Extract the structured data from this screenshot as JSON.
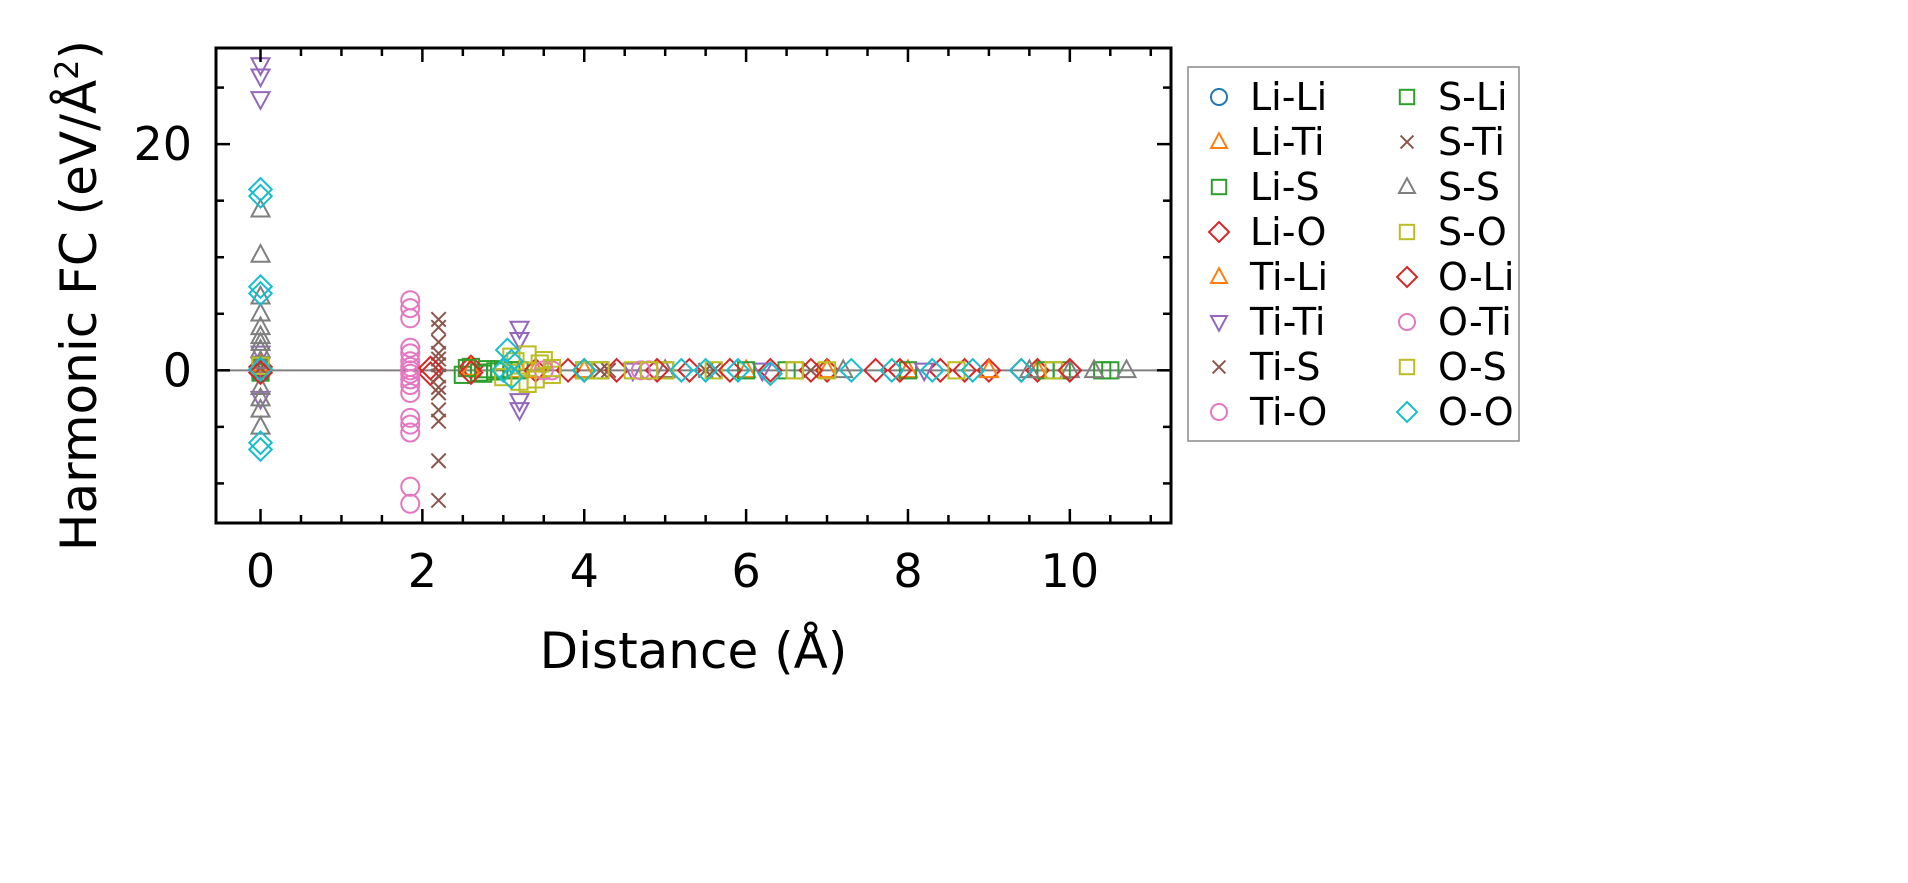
{
  "chart_data": {
    "type": "scatter",
    "title": "",
    "xlabel": "Distance (Å)",
    "ylabel_main": "Harmonic FC (eV/Å",
    "ylabel_sup": "2",
    "ylabel_close": ")",
    "xlim": [
      -0.55,
      11.25
    ],
    "ylim": [
      -13.5,
      28.5
    ],
    "xticks": [
      0,
      2,
      4,
      6,
      8,
      10
    ],
    "yticks": [
      0,
      20
    ],
    "xtick_labels": [
      "0",
      "2",
      "4",
      "6",
      "8",
      "10"
    ],
    "ytick_labels": [
      "0",
      "20"
    ],
    "grid": false,
    "legend_position": "outside-right",
    "reference_line_y": 0,
    "series": [
      {
        "name": "Li-Li",
        "marker": "circle",
        "color": "#1f77b4",
        "x": [
          0,
          0,
          0
        ],
        "y": [
          0.1,
          -0.2,
          0.3
        ]
      },
      {
        "name": "Li-Ti",
        "marker": "triangle-up",
        "color": "#ff7f0e",
        "x": [
          0,
          2.6,
          3.2,
          4.0,
          6.0,
          8.0,
          9.6
        ],
        "y": [
          0.6,
          0.1,
          0.0,
          0.0,
          0.0,
          0.0,
          0.0
        ]
      },
      {
        "name": "Li-S",
        "marker": "square",
        "color": "#2ca02c",
        "x": [
          0,
          2.5,
          2.6,
          2.7,
          2.8,
          2.9,
          3.0,
          3.2,
          4.0,
          5.0,
          6.5,
          8.0,
          9.9,
          10.4
        ],
        "y": [
          0.2,
          -0.4,
          0.3,
          -0.2,
          0.1,
          -0.1,
          0.0,
          0.0,
          0.0,
          0.0,
          0.0,
          0.0,
          0.0,
          0.0
        ]
      },
      {
        "name": "Li-O",
        "marker": "diamond",
        "color": "#d62728",
        "x": [
          0,
          2.1,
          2.6,
          3.4,
          4.0,
          4.4,
          5.3,
          6.3,
          7.0,
          7.6,
          8.4,
          9.0,
          9.6
        ],
        "y": [
          0.3,
          -0.3,
          0.3,
          0.0,
          0.0,
          0.0,
          0.0,
          0.0,
          0.0,
          0.0,
          0.0,
          0.0,
          0.0
        ]
      },
      {
        "name": "Ti-Li",
        "marker": "triangle-up",
        "color": "#ff7f0e",
        "x": [
          0,
          2.6,
          3.4,
          5.0,
          7.0,
          9.0
        ],
        "y": [
          0.4,
          0.2,
          0.0,
          0.0,
          0.0,
          0.0
        ]
      },
      {
        "name": "Ti-Ti",
        "marker": "triangle-down",
        "color": "#9467bd",
        "x": [
          0,
          0,
          0,
          0,
          0,
          0,
          3.2,
          3.2,
          3.2,
          3.2,
          4.6,
          6.2,
          8.2
        ],
        "y": [
          27,
          26,
          24,
          1.5,
          -2.5,
          0.5,
          3.7,
          2.7,
          -2.7,
          -3.5,
          0.0,
          0.0,
          0.0
        ]
      },
      {
        "name": "Ti-S",
        "marker": "x",
        "color": "#8c564b",
        "x": [
          2.2,
          2.2,
          2.2,
          2.2,
          2.2,
          2.2,
          2.2,
          2.2,
          2.2,
          2.2,
          2.2,
          4.3,
          5.5,
          6.8
        ],
        "y": [
          4.5,
          3.8,
          2.5,
          1.5,
          0.5,
          -0.5,
          -2.0,
          -3.5,
          -4.5,
          -8.0,
          -11.5,
          0.0,
          0.0,
          0.0
        ]
      },
      {
        "name": "Ti-O",
        "marker": "circle",
        "color": "#e377c2",
        "x": [
          1.85,
          1.85,
          1.85,
          1.85,
          1.85,
          1.85,
          1.85,
          1.85,
          1.85,
          1.85,
          1.85,
          1.85,
          1.85,
          1.85,
          1.85,
          3.6,
          4.8
        ],
        "y": [
          6.2,
          5.5,
          4.6,
          1.5,
          0.8,
          0.3,
          -0.3,
          -0.8,
          -1.3,
          -4.2,
          -4.8,
          -5.5,
          -10.3,
          -11.8,
          0.0,
          0.0,
          0.0
        ]
      },
      {
        "name": "S-Li",
        "marker": "square",
        "color": "#2ca02c",
        "x": [
          0,
          2.55,
          2.75,
          2.95,
          3.1,
          4.2,
          6.0,
          9.7,
          10.5
        ],
        "y": [
          -0.2,
          0.2,
          -0.3,
          0.1,
          0.0,
          0.0,
          0.0,
          0.0,
          0.0
        ]
      },
      {
        "name": "S-Ti",
        "marker": "x",
        "color": "#8c564b",
        "x": [
          0,
          2.2,
          2.2,
          4.2,
          5.6
        ],
        "y": [
          0.2,
          1.0,
          -1.5,
          0.0,
          0.0
        ]
      },
      {
        "name": "S-S",
        "marker": "triangle-up",
        "color": "#7f7f7f",
        "x": [
          0,
          0,
          0,
          0,
          0,
          0,
          0,
          0,
          0,
          0,
          0,
          0,
          0,
          5.0,
          7.2,
          9.5,
          10.0,
          10.3,
          10.7
        ],
        "y": [
          14.2,
          10.2,
          6.5,
          5.0,
          3.8,
          3.0,
          2.4,
          1.8,
          -1.5,
          -2.5,
          -3.5,
          -5.0,
          0.8,
          0.0,
          0.0,
          0.0,
          0.0,
          0.0,
          0.0
        ]
      },
      {
        "name": "S-O",
        "marker": "square",
        "color": "#bcbd22",
        "x": [
          0,
          3.1,
          3.2,
          3.3,
          3.4,
          3.5,
          3.6,
          4.0,
          4.6,
          5.0,
          5.6,
          6.6,
          7.0,
          9.8
        ],
        "y": [
          0.4,
          1.2,
          -1.0,
          1.4,
          -0.8,
          0.9,
          -0.4,
          0.0,
          0.0,
          0.0,
          0.0,
          0.0,
          0.0,
          0.0
        ]
      },
      {
        "name": "O-Li",
        "marker": "diamond",
        "color": "#d62728",
        "x": [
          0,
          2.1,
          2.6,
          3.8,
          4.9,
          5.8,
          6.8,
          7.9,
          8.7,
          9.4,
          10.0
        ],
        "y": [
          -0.2,
          0.2,
          -0.2,
          0.0,
          0.0,
          0.0,
          0.0,
          0.0,
          0.0,
          0.0,
          0.0
        ]
      },
      {
        "name": "O-Ti",
        "marker": "circle",
        "color": "#e377c2",
        "x": [
          1.85,
          1.85,
          3.5,
          4.7
        ],
        "y": [
          2.0,
          -2.0,
          0.0,
          0.0
        ]
      },
      {
        "name": "O-S",
        "marker": "square",
        "color": "#bcbd22",
        "x": [
          3.0,
          3.15,
          3.3,
          3.45,
          3.6,
          4.2,
          4.8,
          6.6,
          8.6
        ],
        "y": [
          -0.6,
          0.8,
          -1.2,
          0.6,
          0.2,
          0.0,
          0.0,
          0.0,
          0.0
        ]
      },
      {
        "name": "O-O",
        "marker": "diamond",
        "color": "#17becf",
        "x": [
          0,
          0,
          0,
          0,
          0,
          0,
          0,
          3.05,
          3.1,
          3.1,
          4.0,
          5.2,
          5.5,
          5.9,
          6.3,
          7.3,
          7.8,
          8.3,
          8.8,
          9.4,
          3.0
        ],
        "y": [
          16.0,
          15.4,
          7.4,
          6.8,
          -6.4,
          -7.0,
          0.1,
          1.8,
          0.8,
          -0.6,
          0.0,
          0.0,
          0.0,
          0.0,
          -0.3,
          0.0,
          0.0,
          0.0,
          0.0,
          0.0,
          0.0
        ]
      }
    ]
  }
}
